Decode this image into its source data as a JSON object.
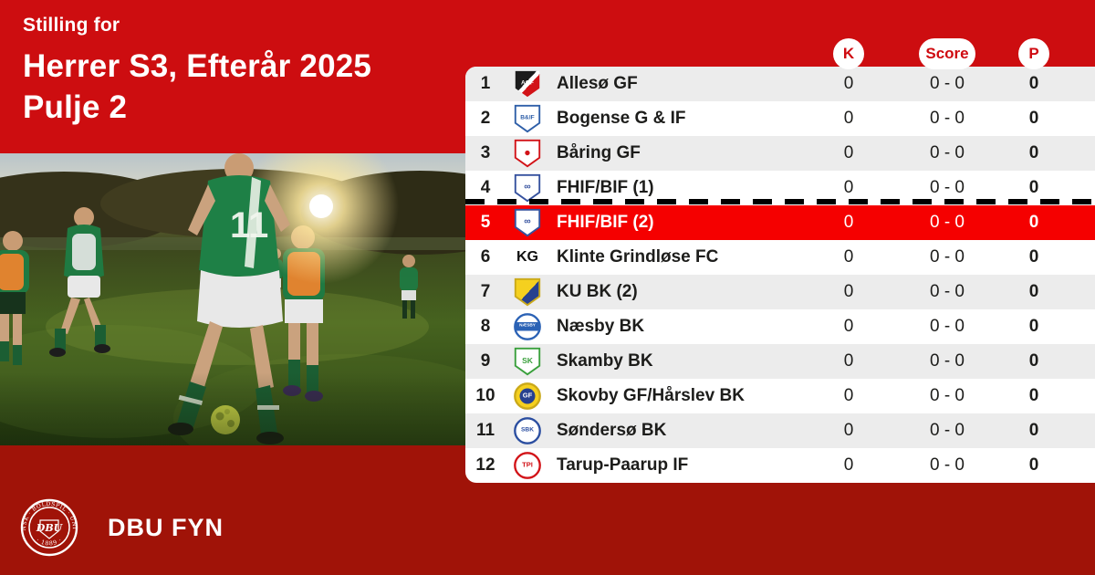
{
  "colors": {
    "brand_red": "#cd0d10",
    "dark_red": "#a01308",
    "highlight_red": "#f50000",
    "row_alt_gray": "#ececec",
    "pill_bg": "#ffffff",
    "pill_text_red": "#cf0a10",
    "text_dark": "#1d1d1b",
    "divider_black": "#000000"
  },
  "header": {
    "eyebrow": "Stilling for",
    "title": "Herrer S3, Efterår 2025",
    "subtitle": "Pulje 2"
  },
  "table": {
    "column_pills": [
      {
        "key": "k",
        "label": "K"
      },
      {
        "key": "score",
        "label": "Score"
      },
      {
        "key": "p",
        "label": "P"
      }
    ],
    "rows": [
      {
        "pos": "1",
        "club": "Allesø GF",
        "k": "0",
        "score": "0 - 0",
        "p": "0",
        "highlight": false,
        "divider_above": false,
        "logo": {
          "shape": "shield",
          "dir": "d",
          "stops": [
            [
              "#1b1b1b",
              0,
              44
            ],
            [
              "#ffffff",
              44,
              56
            ],
            [
              "#d21318",
              56,
              100
            ]
          ],
          "label": "AGF",
          "labelColor": "#ffffff",
          "labelSize": 7
        }
      },
      {
        "pos": "2",
        "club": "Bogense G & IF",
        "k": "0",
        "score": "0 - 0",
        "p": "0",
        "highlight": false,
        "divider_above": false,
        "logo": {
          "shape": "shield",
          "fill": "#ffffff",
          "stroke": "#2f5fa8",
          "label": "B&IF",
          "labelColor": "#2f5fa8",
          "labelSize": 7
        }
      },
      {
        "pos": "3",
        "club": "Båring GF",
        "k": "0",
        "score": "0 - 0",
        "p": "0",
        "highlight": false,
        "divider_above": false,
        "logo": {
          "shape": "shield",
          "fill": "#ffffff",
          "stroke": "#d21318",
          "label": "●",
          "labelColor": "#d21318",
          "labelSize": 13
        }
      },
      {
        "pos": "4",
        "club": "FHIF/BIF (1)",
        "k": "0",
        "score": "0 - 0",
        "p": "0",
        "highlight": false,
        "divider_above": false,
        "logo": {
          "shape": "shield",
          "fill": "#ffffff",
          "stroke": "#35519e",
          "label": "∞",
          "labelColor": "#35519e",
          "labelSize": 11
        }
      },
      {
        "pos": "5",
        "club": "FHIF/BIF (2)",
        "k": "0",
        "score": "0 - 0",
        "p": "0",
        "highlight": true,
        "divider_above": true,
        "logo": {
          "shape": "shield",
          "fill": "#ffffff",
          "stroke": "#35519e",
          "label": "∞",
          "labelColor": "#35519e",
          "labelSize": 11
        }
      },
      {
        "pos": "6",
        "club": "Klinte Grindløse FC",
        "k": "0",
        "score": "0 - 0",
        "p": "0",
        "highlight": false,
        "divider_above": false,
        "logo": {
          "shape": "text",
          "label": "KG",
          "labelColor": "#101010",
          "labelSize": 17
        }
      },
      {
        "pos": "7",
        "club": "KU BK (2)",
        "k": "0",
        "score": "0 - 0",
        "p": "0",
        "highlight": false,
        "divider_above": false,
        "logo": {
          "shape": "shield",
          "dir": "d",
          "stops": [
            [
              "#f5d01f",
              0,
              52
            ],
            [
              "#27418f",
              52,
              100
            ]
          ],
          "stroke": "#caa91a"
        }
      },
      {
        "pos": "8",
        "club": "Næsby BK",
        "k": "0",
        "score": "0 - 0",
        "p": "0",
        "highlight": false,
        "divider_above": false,
        "logo": {
          "shape": "circle",
          "dir": "v",
          "stops": [
            [
              "#ffffff",
              0,
              32
            ],
            [
              "#2b62b5",
              32,
              66
            ],
            [
              "#ffffff",
              66,
              100
            ]
          ],
          "stroke": "#2b62b5",
          "label": "NÆSBY",
          "labelColor": "#ffffff",
          "labelSize": 5
        }
      },
      {
        "pos": "9",
        "club": "Skamby BK",
        "k": "0",
        "score": "0 - 0",
        "p": "0",
        "highlight": false,
        "divider_above": false,
        "logo": {
          "shape": "shield",
          "fill": "#ffffff",
          "stroke": "#3aa03c",
          "label": "SK",
          "labelColor": "#3aa03c",
          "labelSize": 9
        }
      },
      {
        "pos": "10",
        "club": "Skovby GF/Hårslev BK",
        "k": "0",
        "score": "0 - 0",
        "p": "0",
        "highlight": false,
        "divider_above": false,
        "logo": {
          "shape": "circle",
          "fill": "#f5d01f",
          "stroke": "#caa91a",
          "inner": {
            "r": 9,
            "fill": "#27418f"
          },
          "label": "GF",
          "labelColor": "#ffffff",
          "labelSize": 8
        }
      },
      {
        "pos": "11",
        "club": "Søndersø BK",
        "k": "0",
        "score": "0 - 0",
        "p": "0",
        "highlight": false,
        "divider_above": false,
        "logo": {
          "shape": "circle",
          "fill": "#ffffff",
          "stroke": "#2b4ea0",
          "label": "SBK",
          "labelColor": "#2b4ea0",
          "labelSize": 7
        }
      },
      {
        "pos": "12",
        "club": "Tarup-Paarup IF",
        "k": "0",
        "score": "0 - 0",
        "p": "0",
        "highlight": false,
        "divider_above": false,
        "logo": {
          "shape": "circle",
          "fill": "#ffffff",
          "stroke": "#d21318",
          "label": "TPI",
          "labelColor": "#d21318",
          "labelSize": 8
        }
      }
    ]
  },
  "footer": {
    "brand": "DBU FYN",
    "crest": {
      "ring_text": "DANSK · BOLDSPIL · UNION",
      "center": "DBU",
      "year": "· 1889 ·"
    }
  }
}
